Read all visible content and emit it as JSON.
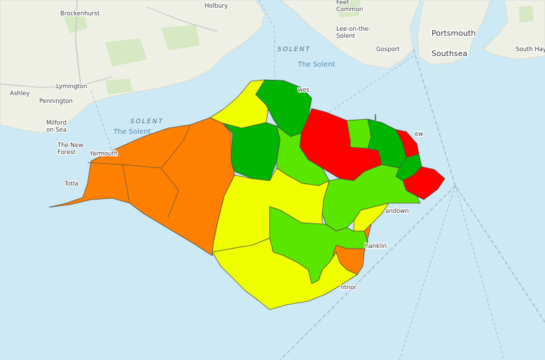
{
  "map": {
    "places": {
      "brockenhurst": "Brockenhurst",
      "holbury": "Holbury",
      "feet_common": "Feet\nCommon",
      "lee_on_the_solent": "Lee-on-the-\nSolent",
      "gosport": "Gosport",
      "portsmouth": "Portsmouth",
      "southsea": "Southsea",
      "south_hayling": "South Hayl",
      "ashley": "Ashley",
      "lymington": "Lymington",
      "pennington": "Pennington",
      "milford_on_sea": "Milford\non Sea",
      "the_new_forest": "The New\nForest",
      "cowes": "wes",
      "yarmouth": "Yarmouth",
      "totland": "Totla",
      "ryde": "ew",
      "sandown": "andown",
      "shanklin": "hanklin",
      "ventnor": "ntnor"
    },
    "water": {
      "solent_upper": "SOLENT",
      "the_solent_upper": "The Solent",
      "solent_left": "SOLENT",
      "the_solent_left": "The Solent"
    },
    "colors": {
      "sea": "#cde9f5",
      "land": "#eef0e6",
      "red": "#ff0000",
      "orange": "#ff7f00",
      "yellow": "#f0ff00",
      "light_green": "#5be600",
      "green": "#00b400"
    }
  }
}
